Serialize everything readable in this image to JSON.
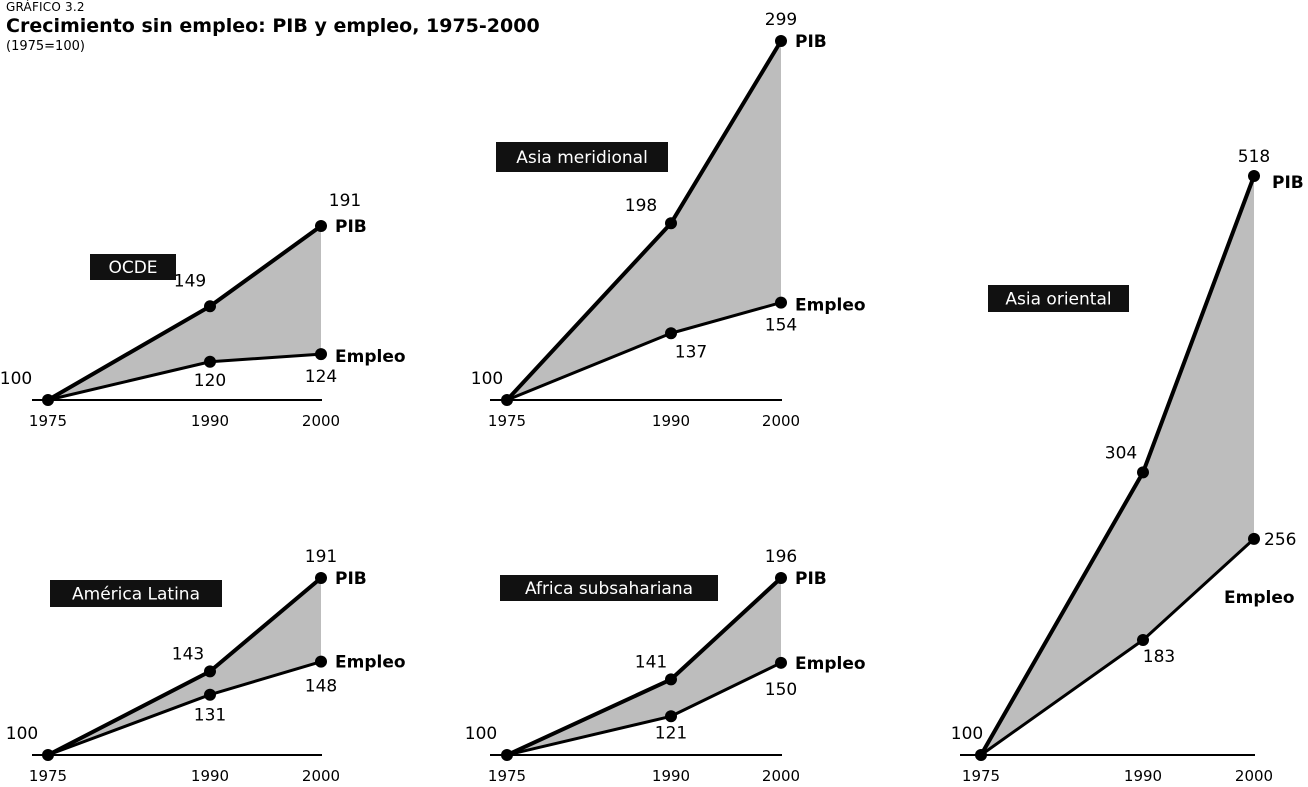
{
  "header": {
    "label": "GRÁFICO 3.2",
    "title": "Crecimiento sin empleo: PIB y empleo, 1975-2000",
    "subtitle": "(1975=100)"
  },
  "colors": {
    "line": "#000000",
    "fill": "#bdbdbd",
    "label_bg": "#111111",
    "label_text": "#ffffff"
  },
  "chart_data": [
    {
      "type": "line",
      "title": "OCDE",
      "x": [
        "1975",
        "1990",
        "2000"
      ],
      "series": [
        {
          "name": "PIB",
          "values": [
            100,
            149,
            191
          ]
        },
        {
          "name": "Empleo",
          "values": [
            100,
            120,
            124
          ]
        }
      ],
      "ylim": [
        100,
        191
      ]
    },
    {
      "type": "line",
      "title": "Asia meridional",
      "x": [
        "1975",
        "1990",
        "2000"
      ],
      "series": [
        {
          "name": "PIB",
          "values": [
            100,
            198,
            299
          ]
        },
        {
          "name": "Empleo",
          "values": [
            100,
            137,
            154
          ]
        }
      ],
      "ylim": [
        100,
        299
      ]
    },
    {
      "type": "line",
      "title": "Asia oriental",
      "x": [
        "1975",
        "1990",
        "2000"
      ],
      "series": [
        {
          "name": "PIB",
          "values": [
            100,
            304,
            518
          ]
        },
        {
          "name": "Empleo",
          "values": [
            100,
            183,
            256
          ]
        }
      ],
      "ylim": [
        100,
        518
      ]
    },
    {
      "type": "line",
      "title": "América Latina",
      "x": [
        "1975",
        "1990",
        "2000"
      ],
      "series": [
        {
          "name": "PIB",
          "values": [
            100,
            143,
            191
          ]
        },
        {
          "name": "Empleo",
          "values": [
            100,
            131,
            148
          ]
        }
      ],
      "ylim": [
        100,
        191
      ]
    },
    {
      "type": "line",
      "title": "Africa subsahariana",
      "x": [
        "1975",
        "1990",
        "2000"
      ],
      "series": [
        {
          "name": "PIB",
          "values": [
            100,
            141,
            196
          ]
        },
        {
          "name": "Empleo",
          "values": [
            100,
            121,
            150
          ]
        }
      ],
      "ylim": [
        100,
        196
      ]
    }
  ]
}
